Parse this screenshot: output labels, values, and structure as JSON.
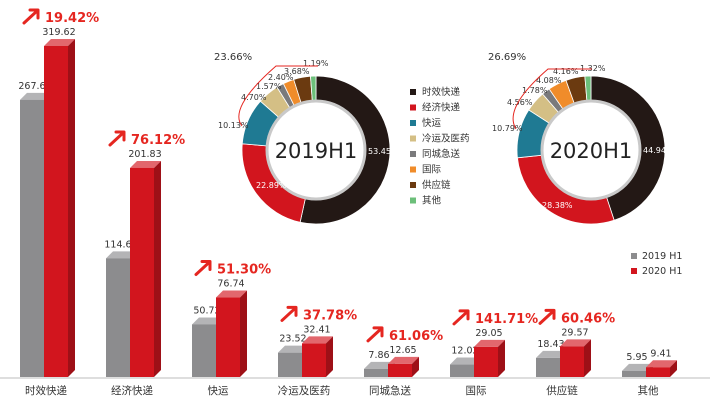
{
  "chart_data": [
    {
      "type": "bar",
      "categories": [
        "时效快递",
        "经济快递",
        "快运",
        "冷运及医药",
        "同城急送",
        "国际",
        "供应链",
        "其他"
      ],
      "series": [
        {
          "name": "2019 H1",
          "values": [
            267.65,
            114.6,
            50.72,
            23.52,
            7.86,
            12.02,
            18.43,
            5.95
          ],
          "labels": [
            "267.65",
            "114.60",
            "50.72",
            "23.52",
            "7.86",
            "12.02",
            "18.43",
            "5.95"
          ]
        },
        {
          "name": "2020 H1",
          "values": [
            319.62,
            201.83,
            76.74,
            32.41,
            12.65,
            29.05,
            29.57,
            9.41
          ],
          "labels": [
            "319.62",
            "201.83",
            "76.74",
            "32.41",
            "12.65",
            "29.05",
            "29.57",
            "9.41"
          ]
        }
      ],
      "growth_labels": [
        "19.42%",
        "76.12%",
        "51.30%",
        "37.78%",
        "61.06%",
        "141.71%",
        "60.46%",
        ""
      ],
      "colors": {
        "2019 H1": "#8c8c8e",
        "2020 H1": "#d2151e"
      }
    },
    {
      "type": "pie",
      "center_label": "2019H1",
      "values": [
        53.45,
        22.89,
        10.13,
        4.7,
        1.57,
        2.4,
        3.68,
        1.19
      ],
      "labels": [
        "53.45%",
        "22.89%",
        "10.13%",
        "4.70%",
        "1.57%",
        "2.40%",
        "3.68%",
        "1.19%"
      ],
      "other_labels": [
        "23.66%"
      ]
    },
    {
      "type": "pie",
      "center_label": "2020H1",
      "values": [
        44.94,
        28.38,
        10.79,
        4.56,
        1.78,
        4.08,
        4.16,
        1.32
      ],
      "labels": [
        "44.94%",
        "28.38%",
        "10.79%",
        "4.56%",
        "1.78%",
        "4.08%",
        "4.16%",
        "1.32%"
      ],
      "other_labels": [
        "26.69%"
      ]
    }
  ],
  "pie_legend": {
    "items": [
      "时效快递",
      "经济快递",
      "快运",
      "冷运及医药",
      "同城急送",
      "国际",
      "供应链",
      "其他"
    ],
    "colors": [
      "#231815",
      "#d2151e",
      "#1f7a93",
      "#d4bf85",
      "#7a7a7c",
      "#f08c2a",
      "#6b3a10",
      "#6cbf7a"
    ]
  },
  "bar_legend": [
    "2019 H1",
    "2020 H1"
  ]
}
